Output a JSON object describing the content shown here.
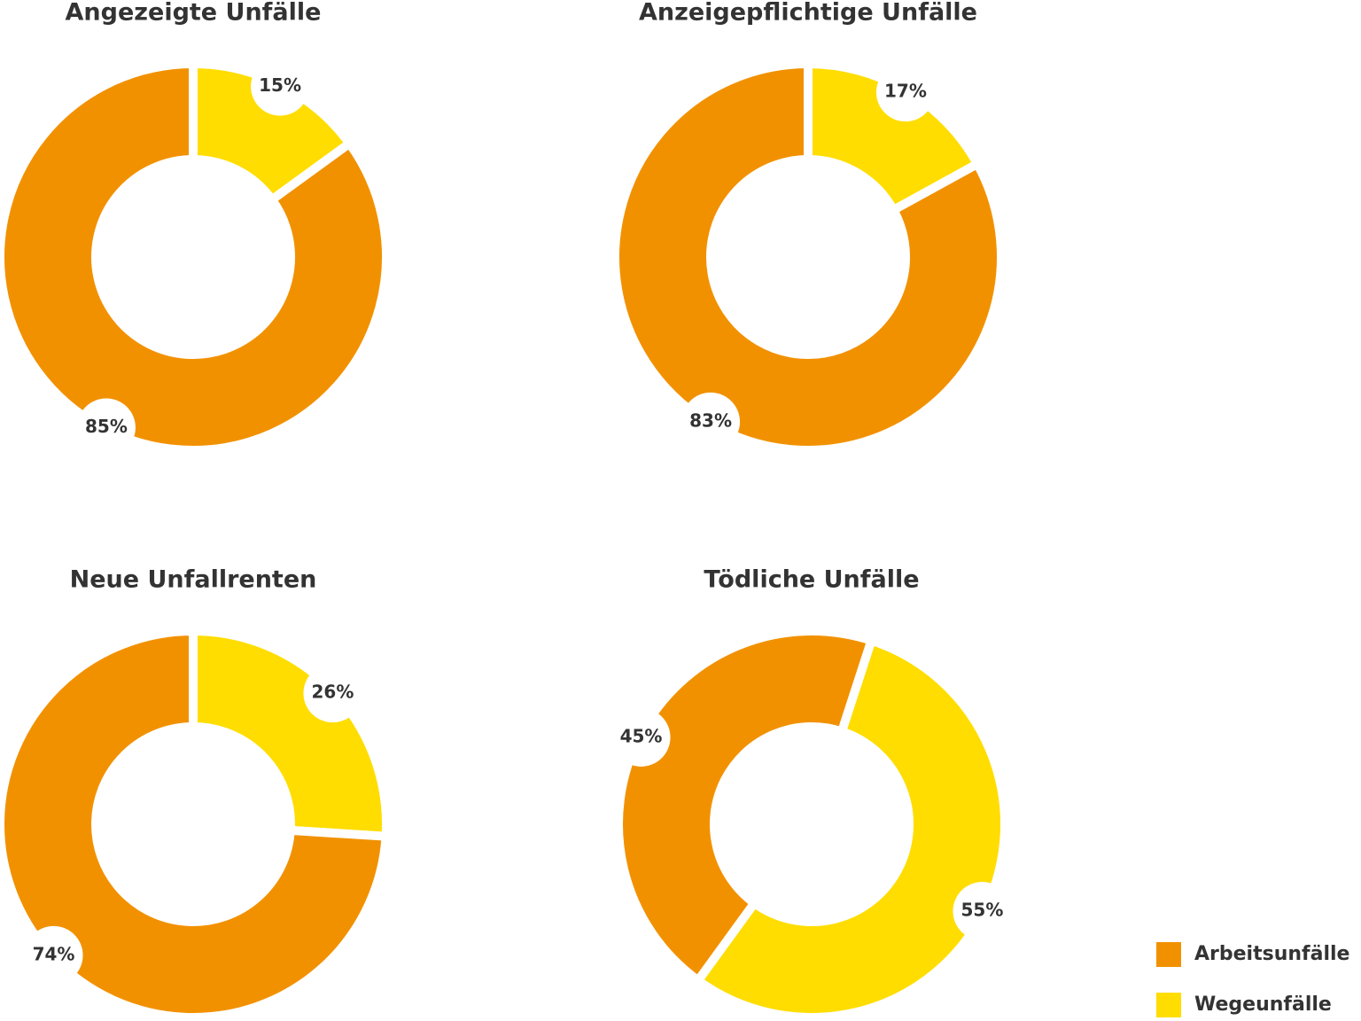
{
  "chart_data": [
    {
      "type": "pie",
      "title": "Angezeigte Unfälle",
      "categories": [
        "Arbeitsunfälle",
        "Wegeunfälle"
      ],
      "values": [
        85,
        15
      ],
      "value_labels": [
        "85%",
        "15%"
      ],
      "colors": [
        "#f29100",
        "#ffdd00"
      ],
      "start_angle": 0
    },
    {
      "type": "pie",
      "title": "Anzeigepflichtige Unfälle",
      "values": [
        83,
        17
      ],
      "value_labels": [
        "83%",
        "17%"
      ],
      "colors": [
        "#f29100",
        "#ffdd00"
      ],
      "start_angle": 0
    },
    {
      "type": "pie",
      "title": "Neue Unfallrenten",
      "values": [
        74,
        26
      ],
      "value_labels": [
        "74%",
        "26%"
      ],
      "colors": [
        "#f29100",
        "#ffdd00"
      ],
      "start_angle": 0
    },
    {
      "type": "pie",
      "title": "Tödliche Unfälle",
      "values": [
        45,
        55
      ],
      "value_labels": [
        "45%",
        "55%"
      ],
      "colors": [
        "#f29100",
        "#ffdd00"
      ],
      "start_angle": 18
    }
  ]
}
